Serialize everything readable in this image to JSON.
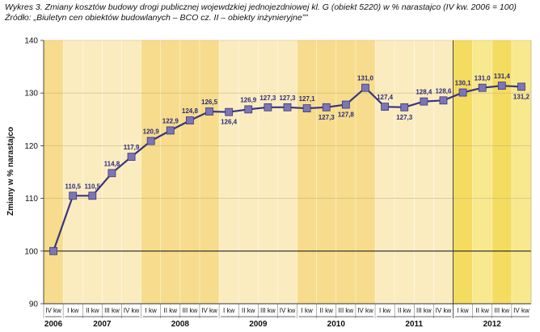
{
  "caption": {
    "title": "Wykres 3. Zmiany kosztów budowy drogi publicznej wojewdzkiej jednojezdniowej kl. G (obiekt 5220) w % narastajco (IV kw. 2006 = 100)",
    "source": "Źródło: „Biuletyn cen obiektów budowlanych – BCO cz. II – obiekty inżynieryjne””"
  },
  "colors": {
    "band_dark": "#f6dc8c",
    "band_light": "#fbecc0",
    "band_2012_dark": "#f4dc60",
    "band_2012_light": "#f8e98e",
    "line": "#38357f",
    "marker": "#7d76b4"
  },
  "chart_data": {
    "type": "line",
    "ylabel": "Zmiany w % narastajco",
    "ylim": [
      90,
      140
    ],
    "yticks": [
      90,
      100,
      110,
      120,
      130,
      140
    ],
    "grid": true,
    "categories": [
      "IV kw",
      "I kw",
      "II kw",
      "III kw",
      "IV kw",
      "I kw",
      "II kw",
      "III kw",
      "IV kw",
      "I kw",
      "II kw",
      "III kw",
      "IV kw",
      "I kw",
      "II kw",
      "III kw",
      "IV kw",
      "I kw",
      "II kw",
      "III kw",
      "IV kw",
      "I kw",
      "II kw",
      "III kw",
      "IV kw"
    ],
    "years": [
      {
        "label": "2006",
        "from": 0,
        "to": 0
      },
      {
        "label": "2007",
        "from": 1,
        "to": 4
      },
      {
        "label": "2008",
        "from": 5,
        "to": 8
      },
      {
        "label": "2009",
        "from": 9,
        "to": 12
      },
      {
        "label": "2010",
        "from": 13,
        "to": 16
      },
      {
        "label": "2011",
        "from": 17,
        "to": 20
      },
      {
        "label": "2012",
        "from": 21,
        "to": 24
      }
    ],
    "values": [
      100,
      110.5,
      110.5,
      114.8,
      117.9,
      120.9,
      122.9,
      124.8,
      126.5,
      126.4,
      126.9,
      127.3,
      127.3,
      127.1,
      127.3,
      127.8,
      131.0,
      127.4,
      127.3,
      128.4,
      128.6,
      130.1,
      131.0,
      131.4,
      131.2
    ],
    "labels": [
      "",
      "110,5",
      "110,5",
      "114,8",
      "117,9",
      "120,9",
      "122,9",
      "124,8",
      "126,5",
      "126,4",
      "126,9",
      "127,3",
      "127,3",
      "127,1",
      "127,3",
      "127,8",
      "131,0",
      "127,4",
      "127,3",
      "128,4",
      "128,6",
      "130,1",
      "131,0",
      "131,4",
      "131,2"
    ],
    "divider_after_index": 20
  }
}
